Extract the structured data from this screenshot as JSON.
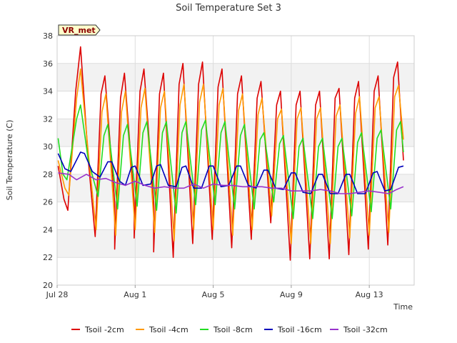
{
  "chart_data": {
    "type": "line",
    "title": "Soil Temperature Set 3",
    "xlabel": "Time",
    "ylabel": "Soil Temperature (C)",
    "badge": "VR_met",
    "ylim": [
      20,
      38
    ],
    "yticks": [
      20,
      22,
      24,
      26,
      28,
      30,
      32,
      34,
      36,
      38
    ],
    "xlim_day": [
      0,
      18.3
    ],
    "xticks": [
      {
        "label": "Jul 28",
        "day": 0
      },
      {
        "label": "Aug 1",
        "day": 4
      },
      {
        "label": "Aug 5",
        "day": 8
      },
      {
        "label": "Aug 9",
        "day": 12
      },
      {
        "label": "Aug 13",
        "day": 16
      }
    ],
    "grid": true,
    "legend_position": "bottom",
    "series": [
      {
        "name": "Tsoil -2cm",
        "color": "#dd0000",
        "points": [
          [
            0.05,
            28.6
          ],
          [
            0.35,
            26.2
          ],
          [
            0.55,
            25.4
          ],
          [
            0.95,
            34.0
          ],
          [
            1.2,
            37.2
          ],
          [
            1.6,
            29.0
          ],
          [
            1.95,
            23.5
          ],
          [
            2.25,
            33.8
          ],
          [
            2.45,
            35.1
          ],
          [
            2.95,
            26.0
          ],
          [
            2.95,
            22.6
          ],
          [
            3.25,
            33.5
          ],
          [
            3.45,
            35.3
          ],
          [
            3.95,
            26.0
          ],
          [
            3.95,
            23.4
          ],
          [
            4.25,
            34.0
          ],
          [
            4.45,
            35.6
          ],
          [
            4.95,
            26.0
          ],
          [
            4.95,
            22.4
          ],
          [
            5.25,
            33.8
          ],
          [
            5.45,
            35.3
          ],
          [
            5.95,
            22.0
          ],
          [
            6.25,
            34.5
          ],
          [
            6.45,
            36.0
          ],
          [
            6.95,
            23.0
          ],
          [
            7.25,
            34.5
          ],
          [
            7.45,
            36.1
          ],
          [
            7.95,
            23.3
          ],
          [
            8.25,
            34.3
          ],
          [
            8.45,
            35.6
          ],
          [
            8.95,
            22.7
          ],
          [
            9.25,
            33.8
          ],
          [
            9.45,
            35.1
          ],
          [
            9.95,
            23.3
          ],
          [
            10.25,
            33.5
          ],
          [
            10.45,
            34.7
          ],
          [
            10.95,
            24.5
          ],
          [
            11.25,
            33.0
          ],
          [
            11.45,
            34.0
          ],
          [
            11.95,
            21.8
          ],
          [
            12.25,
            33.0
          ],
          [
            12.45,
            34.0
          ],
          [
            12.95,
            21.9
          ],
          [
            13.25,
            33.0
          ],
          [
            13.45,
            34.0
          ],
          [
            13.95,
            21.9
          ],
          [
            14.25,
            33.5
          ],
          [
            14.45,
            34.2
          ],
          [
            14.95,
            22.2
          ],
          [
            15.25,
            33.5
          ],
          [
            15.45,
            34.7
          ],
          [
            15.95,
            22.6
          ],
          [
            16.25,
            34.0
          ],
          [
            16.45,
            35.1
          ],
          [
            16.95,
            22.9
          ],
          [
            17.25,
            35.0
          ],
          [
            17.45,
            36.1
          ],
          [
            17.75,
            29.0
          ]
        ]
      },
      {
        "name": "Tsoil -4cm",
        "color": "#ff9900",
        "points": [
          [
            0.05,
            29.0
          ],
          [
            0.4,
            27.0
          ],
          [
            0.6,
            26.5
          ],
          [
            1.0,
            33.5
          ],
          [
            1.2,
            35.6
          ],
          [
            1.6,
            29.5
          ],
          [
            2.0,
            24.0
          ],
          [
            2.3,
            32.5
          ],
          [
            2.5,
            33.8
          ],
          [
            3.0,
            23.6
          ],
          [
            3.3,
            32.5
          ],
          [
            3.5,
            34.0
          ],
          [
            4.0,
            24.0
          ],
          [
            4.3,
            32.8
          ],
          [
            4.5,
            34.2
          ],
          [
            5.0,
            23.8
          ],
          [
            5.3,
            32.8
          ],
          [
            5.5,
            34.0
          ],
          [
            6.0,
            23.2
          ],
          [
            6.3,
            33.0
          ],
          [
            6.5,
            34.5
          ],
          [
            7.0,
            24.0
          ],
          [
            7.3,
            33.2
          ],
          [
            7.5,
            34.5
          ],
          [
            8.0,
            24.0
          ],
          [
            8.3,
            33.0
          ],
          [
            8.5,
            34.2
          ],
          [
            9.0,
            23.6
          ],
          [
            9.3,
            32.6
          ],
          [
            9.5,
            33.8
          ],
          [
            10.0,
            24.0
          ],
          [
            10.3,
            32.3
          ],
          [
            10.5,
            33.5
          ],
          [
            11.0,
            25.0
          ],
          [
            11.3,
            32.0
          ],
          [
            11.5,
            32.7
          ],
          [
            12.0,
            23.0
          ],
          [
            12.3,
            32.0
          ],
          [
            12.5,
            32.8
          ],
          [
            13.0,
            23.0
          ],
          [
            13.3,
            32.0
          ],
          [
            13.5,
            32.8
          ],
          [
            14.0,
            23.0
          ],
          [
            14.3,
            32.2
          ],
          [
            14.5,
            33.0
          ],
          [
            15.0,
            23.4
          ],
          [
            15.3,
            32.4
          ],
          [
            15.5,
            33.6
          ],
          [
            16.0,
            23.6
          ],
          [
            16.3,
            32.8
          ],
          [
            16.5,
            33.6
          ],
          [
            17.0,
            23.8
          ],
          [
            17.3,
            33.6
          ],
          [
            17.5,
            34.4
          ],
          [
            17.75,
            30.5
          ]
        ]
      },
      {
        "name": "Tsoil -8cm",
        "color": "#22dd22",
        "points": [
          [
            0.05,
            30.6
          ],
          [
            0.3,
            28.0
          ],
          [
            0.5,
            27.6
          ],
          [
            1.0,
            32.0
          ],
          [
            1.2,
            33.0
          ],
          [
            1.6,
            29.0
          ],
          [
            2.1,
            26.4
          ],
          [
            2.4,
            30.8
          ],
          [
            2.6,
            31.6
          ],
          [
            3.1,
            25.5
          ],
          [
            3.4,
            30.8
          ],
          [
            3.6,
            31.6
          ],
          [
            4.1,
            25.7
          ],
          [
            4.4,
            31.0
          ],
          [
            4.6,
            31.8
          ],
          [
            5.1,
            25.4
          ],
          [
            5.4,
            31.0
          ],
          [
            5.6,
            31.8
          ],
          [
            6.1,
            25.2
          ],
          [
            6.4,
            31.0
          ],
          [
            6.6,
            31.8
          ],
          [
            7.1,
            25.8
          ],
          [
            7.4,
            31.2
          ],
          [
            7.6,
            31.9
          ],
          [
            8.1,
            25.8
          ],
          [
            8.4,
            31.0
          ],
          [
            8.6,
            31.8
          ],
          [
            9.1,
            25.5
          ],
          [
            9.4,
            30.8
          ],
          [
            9.6,
            31.6
          ],
          [
            10.1,
            25.5
          ],
          [
            10.4,
            30.5
          ],
          [
            10.6,
            31.0
          ],
          [
            11.1,
            26.0
          ],
          [
            11.4,
            30.2
          ],
          [
            11.6,
            30.8
          ],
          [
            12.1,
            24.8
          ],
          [
            12.4,
            30.0
          ],
          [
            12.6,
            30.6
          ],
          [
            13.1,
            24.8
          ],
          [
            13.4,
            30.0
          ],
          [
            13.6,
            30.6
          ],
          [
            14.1,
            24.8
          ],
          [
            14.4,
            30.0
          ],
          [
            14.6,
            30.6
          ],
          [
            15.1,
            25.0
          ],
          [
            15.4,
            30.3
          ],
          [
            15.6,
            31.0
          ],
          [
            16.1,
            25.3
          ],
          [
            16.4,
            30.6
          ],
          [
            16.6,
            31.2
          ],
          [
            17.1,
            25.5
          ],
          [
            17.4,
            31.2
          ],
          [
            17.6,
            31.8
          ],
          [
            17.75,
            29.6
          ]
        ]
      },
      {
        "name": "Tsoil -16cm",
        "color": "#0000bb",
        "points": [
          [
            0.05,
            29.5
          ],
          [
            0.4,
            28.4
          ],
          [
            0.7,
            28.2
          ],
          [
            1.2,
            29.6
          ],
          [
            1.4,
            29.5
          ],
          [
            1.8,
            28.2
          ],
          [
            2.2,
            27.8
          ],
          [
            2.6,
            28.9
          ],
          [
            2.8,
            28.9
          ],
          [
            3.2,
            27.5
          ],
          [
            3.5,
            27.2
          ],
          [
            3.8,
            28.5
          ],
          [
            4.0,
            28.6
          ],
          [
            4.4,
            27.2
          ],
          [
            4.8,
            27.3
          ],
          [
            5.1,
            28.6
          ],
          [
            5.3,
            28.7
          ],
          [
            5.7,
            27.2
          ],
          [
            6.1,
            27.1
          ],
          [
            6.4,
            28.5
          ],
          [
            6.6,
            28.6
          ],
          [
            7.0,
            27.0
          ],
          [
            7.4,
            27.0
          ],
          [
            7.8,
            28.6
          ],
          [
            8.0,
            28.6
          ],
          [
            8.4,
            27.1
          ],
          [
            8.8,
            27.2
          ],
          [
            9.2,
            28.6
          ],
          [
            9.4,
            28.6
          ],
          [
            9.8,
            27.2
          ],
          [
            10.2,
            27.0
          ],
          [
            10.6,
            28.3
          ],
          [
            10.8,
            28.3
          ],
          [
            11.2,
            27.0
          ],
          [
            11.6,
            26.9
          ],
          [
            12.0,
            28.1
          ],
          [
            12.2,
            28.1
          ],
          [
            12.6,
            26.7
          ],
          [
            13.0,
            26.6
          ],
          [
            13.4,
            28.0
          ],
          [
            13.6,
            28.0
          ],
          [
            14.0,
            26.6
          ],
          [
            14.4,
            26.6
          ],
          [
            14.8,
            28.0
          ],
          [
            15.0,
            28.0
          ],
          [
            15.4,
            26.6
          ],
          [
            15.8,
            26.6
          ],
          [
            16.2,
            28.1
          ],
          [
            16.4,
            28.2
          ],
          [
            16.8,
            26.8
          ],
          [
            17.1,
            26.9
          ],
          [
            17.5,
            28.5
          ],
          [
            17.75,
            28.6
          ]
        ]
      },
      {
        "name": "Tsoil -32cm",
        "color": "#9933cc",
        "points": [
          [
            0.05,
            28.1
          ],
          [
            0.6,
            28.0
          ],
          [
            1.0,
            27.6
          ],
          [
            1.5,
            28.0
          ],
          [
            2.0,
            27.6
          ],
          [
            2.5,
            27.7
          ],
          [
            3.0,
            27.4
          ],
          [
            3.5,
            27.2
          ],
          [
            4.0,
            27.5
          ],
          [
            4.5,
            27.2
          ],
          [
            5.0,
            27.0
          ],
          [
            5.5,
            27.1
          ],
          [
            6.0,
            27.0
          ],
          [
            6.5,
            27.0
          ],
          [
            7.0,
            27.3
          ],
          [
            7.5,
            27.0
          ],
          [
            8.0,
            27.3
          ],
          [
            8.5,
            27.2
          ],
          [
            9.0,
            27.2
          ],
          [
            9.5,
            27.1
          ],
          [
            10.0,
            27.1
          ],
          [
            10.5,
            27.1
          ],
          [
            11.0,
            27.0
          ],
          [
            11.5,
            27.0
          ],
          [
            12.0,
            26.8
          ],
          [
            12.5,
            26.8
          ],
          [
            13.0,
            26.8
          ],
          [
            13.5,
            26.9
          ],
          [
            14.0,
            26.8
          ],
          [
            14.5,
            26.6
          ],
          [
            15.0,
            26.6
          ],
          [
            15.5,
            26.7
          ],
          [
            16.0,
            26.8
          ],
          [
            16.5,
            26.7
          ],
          [
            17.0,
            26.6
          ],
          [
            17.4,
            26.9
          ],
          [
            17.75,
            27.1
          ]
        ]
      }
    ]
  }
}
